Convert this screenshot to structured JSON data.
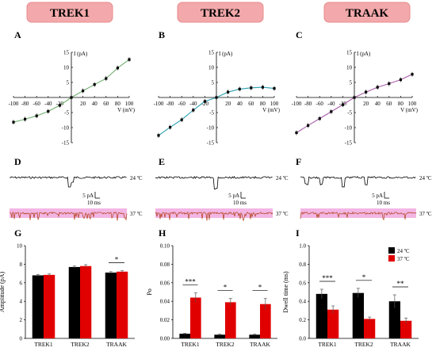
{
  "colors": {
    "header_bg": "#f3a9ab",
    "header_border": "#e88a8d",
    "fit_trek1": "#6fae6f",
    "fit_trek2": "#2a9fb0",
    "fit_traak": "#a75da7",
    "bar_24": "#000000",
    "bar_37": "#e10000",
    "trace_24": "#000000",
    "trace_37_line": "#b84a2a",
    "trace_37_bg": "#f3b6e4"
  },
  "headers": [
    "TREK1",
    "TREK2",
    "TRAAK"
  ],
  "panel_letters": [
    "A",
    "B",
    "C",
    "D",
    "E",
    "F",
    "G",
    "H",
    "I"
  ],
  "traces": {
    "temp_24": "24 ºC",
    "temp_37": "37 ºC",
    "scale_y": "5 pA",
    "scale_x": "10 ms"
  },
  "chart_data": [
    {
      "panel": "A",
      "type": "line",
      "series": [
        {
          "x": [
            -100,
            -80,
            -60,
            -40,
            -20,
            0,
            20,
            40,
            60,
            80,
            100
          ],
          "y": [
            -8.2,
            -7.2,
            -6.1,
            -4.6,
            -2.6,
            0,
            2.2,
            4.3,
            6.3,
            9.8,
            12.6
          ]
        }
      ],
      "xlabel": "V (mV)",
      "ylabel": "I (pA)",
      "xticks": [
        -100,
        -80,
        -60,
        -40,
        -20,
        20,
        40,
        60,
        80,
        100
      ],
      "yticks": [
        15,
        10,
        5,
        -5,
        -10,
        -15
      ],
      "xlim": [
        -100,
        100
      ],
      "ylim": [
        -15,
        15
      ]
    },
    {
      "panel": "B",
      "type": "line",
      "series": [
        {
          "x": [
            -100,
            -80,
            -60,
            -40,
            -20,
            0,
            20,
            40,
            60,
            80,
            100
          ],
          "y": [
            -12.6,
            -9.9,
            -7.4,
            -4.2,
            -1.3,
            0,
            1.8,
            2.8,
            3.2,
            3.4,
            3.0
          ]
        }
      ],
      "xlabel": "V (mV)",
      "ylabel": "I (pA)",
      "xticks": [
        -100,
        -80,
        -60,
        -40,
        -20,
        20,
        40,
        60,
        80,
        100
      ],
      "yticks": [
        15,
        10,
        5,
        -5,
        -10,
        -15
      ],
      "xlim": [
        -100,
        100
      ],
      "ylim": [
        -15,
        15
      ]
    },
    {
      "panel": "C",
      "type": "line",
      "series": [
        {
          "x": [
            -100,
            -80,
            -60,
            -40,
            -20,
            0,
            20,
            40,
            60,
            80,
            100
          ],
          "y": [
            -11.7,
            -9.3,
            -7.0,
            -4.7,
            -2.4,
            0,
            1.8,
            3.4,
            4.6,
            5.9,
            7.7
          ]
        }
      ],
      "xlabel": "V (mV)",
      "ylabel": "I (pA)",
      "xticks": [
        -100,
        -80,
        -60,
        -40,
        -20,
        20,
        40,
        60,
        80,
        100
      ],
      "yticks": [
        15,
        10,
        5,
        -5,
        -10,
        -15
      ],
      "xlim": [
        -100,
        100
      ],
      "ylim": [
        -15,
        15
      ]
    },
    {
      "panel": "G",
      "type": "bar",
      "categories": [
        "TREK1",
        "TREK2",
        "TRAAK"
      ],
      "series": [
        {
          "name": "24 ºC",
          "values": [
            6.8,
            7.7,
            7.1
          ],
          "errors": [
            0.1,
            0.1,
            0.1
          ]
        },
        {
          "name": "37 ºC",
          "values": [
            6.85,
            7.8,
            7.2
          ],
          "errors": [
            0.1,
            0.15,
            0.1
          ]
        }
      ],
      "ylabel": "Amplitude (pA)",
      "yticks": [
        0,
        2,
        4,
        6,
        8,
        10
      ],
      "ylim": [
        0,
        10
      ],
      "significance": [
        "",
        "",
        "*"
      ]
    },
    {
      "panel": "H",
      "type": "bar",
      "categories": [
        "TREK1",
        "TREK2",
        "TRAAK"
      ],
      "series": [
        {
          "name": "24 ºC",
          "values": [
            0.005,
            0.004,
            0.004
          ],
          "errors": [
            0.0005,
            0.0005,
            0.0005
          ]
        },
        {
          "name": "37 ºC",
          "values": [
            0.044,
            0.039,
            0.037
          ],
          "errors": [
            0.005,
            0.004,
            0.006
          ]
        }
      ],
      "ylabel": "Po",
      "yticks": [
        0.0,
        0.02,
        0.04,
        0.06,
        0.08,
        0.1
      ],
      "ytick_labels": [
        "0.00",
        "0.02",
        "0.04",
        "0.06",
        "0.08",
        "0.10"
      ],
      "ylim": [
        0,
        0.1
      ],
      "significance": [
        "***",
        "*",
        "*"
      ]
    },
    {
      "panel": "I",
      "type": "bar",
      "categories": [
        "TREK1",
        "TREK2",
        "TRAAK"
      ],
      "series": [
        {
          "name": "24 ºC",
          "values": [
            0.48,
            0.49,
            0.4
          ],
          "errors": [
            0.05,
            0.05,
            0.07
          ]
        },
        {
          "name": "37 ºC",
          "values": [
            0.31,
            0.21,
            0.19
          ],
          "errors": [
            0.04,
            0.02,
            0.03
          ]
        }
      ],
      "ylabel": "Dwell time (ms)",
      "yticks": [
        0.0,
        0.2,
        0.4,
        0.6,
        0.8,
        1.0
      ],
      "ytick_labels": [
        "0.0",
        "0.2",
        "0.4",
        "0.6",
        "0.8",
        "1.0"
      ],
      "ylim": [
        0,
        1.0
      ],
      "significance": [
        "***",
        "*",
        "**"
      ],
      "legend": [
        "24 ºC",
        "37 ºC"
      ],
      "legend_position": "top-right"
    }
  ]
}
